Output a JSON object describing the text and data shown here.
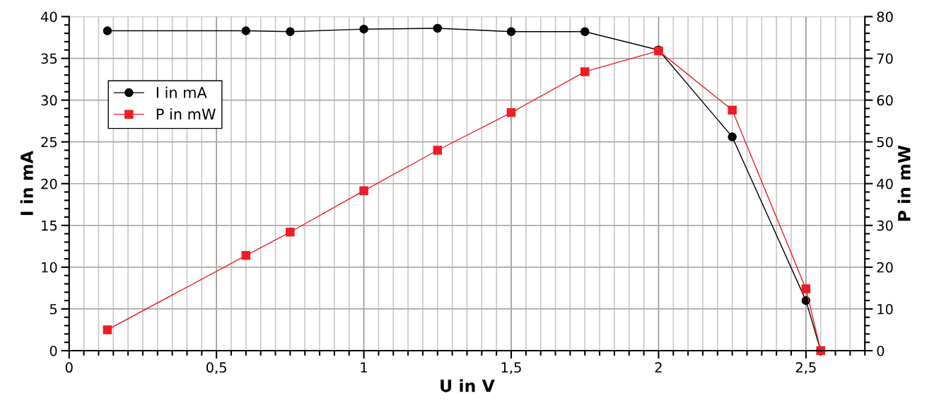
{
  "chart_data": {
    "type": "line",
    "xlabel": "U in V",
    "ylabel": "I in mA",
    "y2label": "P in mW",
    "xlim": [
      0,
      2.7
    ],
    "xticks": [
      0,
      {
        "value": 0.5,
        "label": "0,5"
      },
      1,
      {
        "value": 1.5,
        "label": "1,5"
      },
      2,
      {
        "value": 2.5,
        "label": "2,5"
      }
    ],
    "ylim": [
      0,
      40
    ],
    "yticks": [
      0,
      5,
      10,
      15,
      20,
      25,
      30,
      35,
      40
    ],
    "y2lim": [
      0,
      80
    ],
    "y2ticks": [
      0,
      10,
      20,
      30,
      40,
      50,
      60,
      70,
      80
    ],
    "grid": true,
    "legend": "top left",
    "line_style": "solid",
    "series": [
      {
        "name": "I in mA",
        "color": "#000000",
        "marker": "circle",
        "x": [
          0.13,
          0.6,
          0.75,
          1.0,
          1.25,
          1.5,
          1.75,
          2.0,
          2.25,
          2.5,
          2.55
        ],
        "values": [
          38.3,
          38.3,
          38.2,
          38.5,
          38.6,
          38.2,
          38.2,
          36.0,
          25.6,
          6.0,
          0
        ]
      },
      {
        "name": "P in mW",
        "color": "#ee1c25",
        "marker": "square",
        "axis": "y2",
        "x": [
          0.13,
          0.6,
          0.75,
          1.0,
          1.25,
          1.5,
          1.75,
          2.0,
          2.25,
          2.5,
          2.55
        ],
        "values": [
          5.0,
          22.8,
          28.4,
          38.3,
          48.0,
          57.0,
          66.8,
          71.8,
          57.6,
          14.8,
          0
        ]
      }
    ]
  }
}
